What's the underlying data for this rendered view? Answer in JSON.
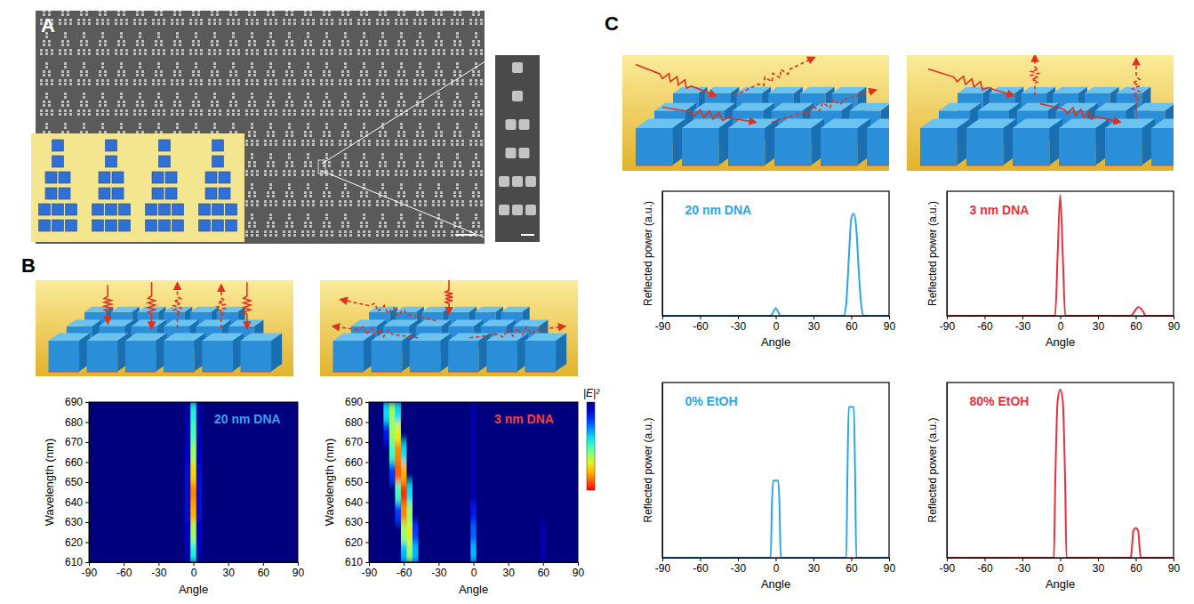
{
  "panel_labels": [
    "A",
    "B",
    "C"
  ],
  "chart_data": [
    {
      "type": "heatmap",
      "annotation": "20 nm DNA",
      "x_label": "Angle",
      "y_label": "Wavelength (nm)",
      "x": [
        -90,
        -85,
        -80,
        -75,
        -70,
        -65,
        -60,
        -55,
        -50,
        -45,
        -40,
        -35,
        -30,
        -25,
        -20,
        -15,
        -10,
        -5,
        0,
        5,
        10,
        15,
        20,
        25,
        30,
        35,
        40,
        45,
        50,
        55,
        60,
        65,
        70,
        75,
        80,
        85,
        90
      ],
      "y": [
        615,
        625,
        635,
        645,
        655,
        665,
        675,
        685
      ],
      "z": [
        [
          0,
          0,
          0,
          0,
          0,
          0,
          0,
          0,
          0,
          0,
          0,
          0,
          0,
          0,
          0,
          0,
          0,
          0.05,
          0.45,
          0.05,
          0,
          0,
          0,
          0,
          0,
          0,
          0,
          0,
          0,
          0,
          0,
          0,
          0,
          0,
          0,
          0,
          0
        ],
        [
          0,
          0,
          0,
          0,
          0,
          0,
          0,
          0,
          0,
          0,
          0,
          0,
          0,
          0,
          0,
          0,
          0,
          0.08,
          0.6,
          0.08,
          0,
          0,
          0,
          0,
          0,
          0,
          0,
          0,
          0,
          0,
          0,
          0,
          0,
          0,
          0,
          0,
          0
        ],
        [
          0,
          0,
          0,
          0,
          0,
          0,
          0,
          0,
          0,
          0,
          0,
          0,
          0,
          0,
          0,
          0,
          0,
          0.1,
          0.8,
          0.1,
          0,
          0,
          0,
          0,
          0,
          0,
          0,
          0,
          0,
          0,
          0,
          0,
          0,
          0,
          0,
          0,
          0
        ],
        [
          0,
          0,
          0,
          0,
          0,
          0,
          0,
          0,
          0,
          0,
          0,
          0,
          0,
          0,
          0,
          0,
          0,
          0.1,
          0.85,
          0.1,
          0,
          0,
          0,
          0,
          0,
          0,
          0,
          0,
          0,
          0,
          0,
          0,
          0,
          0,
          0,
          0,
          0
        ],
        [
          0,
          0,
          0,
          0,
          0,
          0,
          0,
          0,
          0,
          0,
          0,
          0,
          0,
          0,
          0,
          0,
          0,
          0.1,
          0.75,
          0.1,
          0,
          0,
          0,
          0,
          0,
          0,
          0,
          0,
          0,
          0,
          0,
          0,
          0,
          0,
          0,
          0,
          0
        ],
        [
          0,
          0,
          0,
          0,
          0,
          0,
          0,
          0,
          0,
          0,
          0,
          0,
          0,
          0,
          0,
          0,
          0,
          0.08,
          0.6,
          0.08,
          0,
          0,
          0,
          0,
          0,
          0,
          0,
          0,
          0,
          0,
          0,
          0,
          0,
          0,
          0,
          0,
          0
        ],
        [
          0,
          0,
          0,
          0,
          0,
          0,
          0,
          0,
          0,
          0,
          0,
          0,
          0,
          0,
          0,
          0,
          0,
          0.05,
          0.5,
          0.05,
          0,
          0,
          0,
          0,
          0,
          0,
          0,
          0,
          0,
          0,
          0,
          0,
          0,
          0,
          0,
          0,
          0
        ],
        [
          0,
          0,
          0,
          0,
          0,
          0,
          0,
          0,
          0,
          0,
          0,
          0,
          0,
          0,
          0,
          0,
          0,
          0.05,
          0.45,
          0.05,
          0,
          0,
          0,
          0,
          0,
          0,
          0,
          0,
          0,
          0,
          0,
          0,
          0,
          0,
          0,
          0,
          0
        ]
      ],
      "zlim": [
        0,
        1
      ],
      "xlim": [
        -90,
        90
      ],
      "xticks": [
        -90,
        -60,
        -30,
        0,
        30,
        60,
        90
      ],
      "ylim": [
        610,
        690
      ],
      "yticks": [
        610,
        620,
        630,
        640,
        650,
        660,
        670,
        680,
        690
      ]
    },
    {
      "type": "heatmap",
      "annotation": "3 nm DNA",
      "x_label": "Angle",
      "y_label": "Wavelength (nm)",
      "colorbar_label": "|E|²",
      "x": [
        -90,
        -85,
        -80,
        -75,
        -70,
        -65,
        -60,
        -55,
        -50,
        -45,
        -40,
        -35,
        -30,
        -25,
        -20,
        -15,
        -10,
        -5,
        0,
        5,
        10,
        15,
        20,
        25,
        30,
        35,
        40,
        45,
        50,
        55,
        60,
        65,
        70,
        75,
        80,
        85,
        90
      ],
      "y": [
        615,
        625,
        635,
        645,
        655,
        665,
        675,
        685
      ],
      "z": [
        [
          0,
          0,
          0,
          0,
          0,
          0,
          0.35,
          0.6,
          0.35,
          0,
          0,
          0,
          0,
          0,
          0,
          0,
          0,
          0,
          0.35,
          0,
          0,
          0,
          0,
          0,
          0,
          0,
          0,
          0,
          0,
          0,
          0.05,
          0,
          0,
          0,
          0,
          0,
          0
        ],
        [
          0,
          0,
          0,
          0,
          0,
          0,
          0.6,
          0.7,
          0.2,
          0,
          0,
          0,
          0,
          0,
          0,
          0,
          0,
          0,
          0.25,
          0,
          0,
          0,
          0,
          0,
          0,
          0,
          0,
          0,
          0,
          0,
          0.05,
          0,
          0,
          0,
          0,
          0,
          0
        ],
        [
          0,
          0,
          0,
          0,
          0,
          0.2,
          0.85,
          0.6,
          0,
          0,
          0,
          0,
          0,
          0,
          0,
          0,
          0,
          0,
          0.15,
          0,
          0,
          0,
          0,
          0,
          0,
          0,
          0,
          0,
          0,
          0,
          0,
          0,
          0,
          0,
          0,
          0,
          0
        ],
        [
          0,
          0,
          0,
          0,
          0,
          0.5,
          0.95,
          0.4,
          0,
          0,
          0,
          0,
          0,
          0,
          0,
          0,
          0,
          0,
          0.05,
          0,
          0,
          0,
          0,
          0,
          0,
          0,
          0,
          0,
          0,
          0,
          0,
          0,
          0,
          0,
          0,
          0,
          0
        ],
        [
          0,
          0,
          0,
          0,
          0.2,
          0.9,
          0.8,
          0,
          0,
          0,
          0,
          0,
          0,
          0,
          0,
          0,
          0,
          0,
          0.05,
          0,
          0,
          0,
          0,
          0,
          0,
          0,
          0,
          0,
          0,
          0,
          0,
          0,
          0,
          0,
          0,
          0,
          0
        ],
        [
          0,
          0,
          0,
          0,
          0.5,
          0.85,
          0.4,
          0,
          0,
          0,
          0,
          0,
          0,
          0,
          0,
          0,
          0,
          0,
          0.05,
          0,
          0,
          0,
          0,
          0,
          0,
          0,
          0,
          0,
          0,
          0,
          0,
          0,
          0,
          0,
          0,
          0,
          0
        ],
        [
          0,
          0,
          0,
          0.15,
          0.6,
          0.7,
          0,
          0,
          0,
          0,
          0,
          0,
          0,
          0,
          0,
          0,
          0,
          0,
          0.05,
          0,
          0,
          0,
          0,
          0,
          0,
          0,
          0,
          0,
          0,
          0,
          0,
          0,
          0,
          0,
          0,
          0,
          0
        ],
        [
          0,
          0,
          0,
          0.4,
          0.6,
          0.4,
          0,
          0,
          0,
          0,
          0,
          0,
          0,
          0,
          0,
          0,
          0,
          0,
          0.05,
          0,
          0,
          0,
          0,
          0,
          0,
          0,
          0,
          0,
          0,
          0,
          0,
          0,
          0,
          0,
          0,
          0,
          0
        ]
      ],
      "zlim": [
        0,
        1
      ],
      "xlim": [
        -90,
        90
      ],
      "xticks": [
        -90,
        -60,
        -30,
        0,
        30,
        60,
        90
      ],
      "ylim": [
        610,
        690
      ],
      "yticks": [
        610,
        620,
        630,
        640,
        650,
        660,
        670,
        680,
        690
      ]
    },
    {
      "type": "line",
      "annotation": "20 nm DNA",
      "x_label": "Angle",
      "y_label": "Reflected power (a.u.)",
      "color": "#2aa6e6",
      "x": [
        -90,
        -4,
        -2,
        0,
        2,
        4,
        54,
        56,
        58,
        60,
        62,
        64,
        66,
        68,
        70,
        90
      ],
      "values": [
        0,
        0,
        0.03,
        0.06,
        0.03,
        0,
        0,
        0.1,
        0.45,
        0.78,
        0.82,
        0.7,
        0.35,
        0.08,
        0,
        0
      ],
      "xlim": [
        -90,
        90
      ],
      "xticks": [
        -90,
        -60,
        -30,
        0,
        30,
        60,
        90
      ],
      "ylim": [
        0,
        1
      ],
      "tick_labels": "x"
    },
    {
      "type": "line",
      "annotation": "3 nm DNA",
      "x_label": "Angle",
      "y_label": "Reflected power (a.u.)",
      "color": "#e8313a",
      "x": [
        -90,
        -4,
        -2,
        0,
        2,
        4,
        54,
        56,
        58,
        60,
        62,
        64,
        66,
        68,
        70,
        90
      ],
      "values": [
        0,
        0,
        0.5,
        0.97,
        0.5,
        0,
        0,
        0,
        0.02,
        0.05,
        0.07,
        0.06,
        0.03,
        0,
        0,
        0
      ],
      "xlim": [
        -90,
        90
      ],
      "xticks": [
        -90,
        -60,
        -30,
        0,
        30,
        60,
        90
      ],
      "ylim": [
        0,
        1
      ],
      "tick_labels": "x"
    },
    {
      "type": "line",
      "annotation": "0% EtOH",
      "x_label": "Angle",
      "y_label": "Reflected power (a.u.)",
      "color": "#2aa6e6",
      "x": [
        -90,
        -4,
        -3,
        -2,
        2,
        3,
        4,
        56,
        57,
        58,
        62,
        63,
        64,
        90
      ],
      "values": [
        0,
        0,
        0.3,
        0.44,
        0.44,
        0.3,
        0,
        0,
        0.5,
        0.86,
        0.86,
        0.5,
        0,
        0
      ],
      "xlim": [
        -90,
        90
      ],
      "xticks": [
        -90,
        -60,
        -30,
        0,
        30,
        60,
        90
      ],
      "ylim": [
        0,
        1
      ],
      "tick_labels": "x"
    },
    {
      "type": "line",
      "annotation": "80% EtOH",
      "x_label": "Angle",
      "y_label": "Reflected power (a.u.)",
      "color": "#e8313a",
      "x": [
        -90,
        -5,
        -4,
        -2,
        0,
        2,
        4,
        5,
        56,
        57,
        58,
        60,
        62,
        63,
        64,
        90
      ],
      "values": [
        0,
        0,
        0.4,
        0.9,
        0.96,
        0.9,
        0.4,
        0,
        0,
        0.06,
        0.15,
        0.17,
        0.15,
        0.06,
        0,
        0
      ],
      "xlim": [
        -90,
        90
      ],
      "xticks": [
        -90,
        -60,
        -30,
        0,
        30,
        60,
        90
      ],
      "ylim": [
        0,
        1
      ],
      "tick_labels": "x"
    }
  ]
}
